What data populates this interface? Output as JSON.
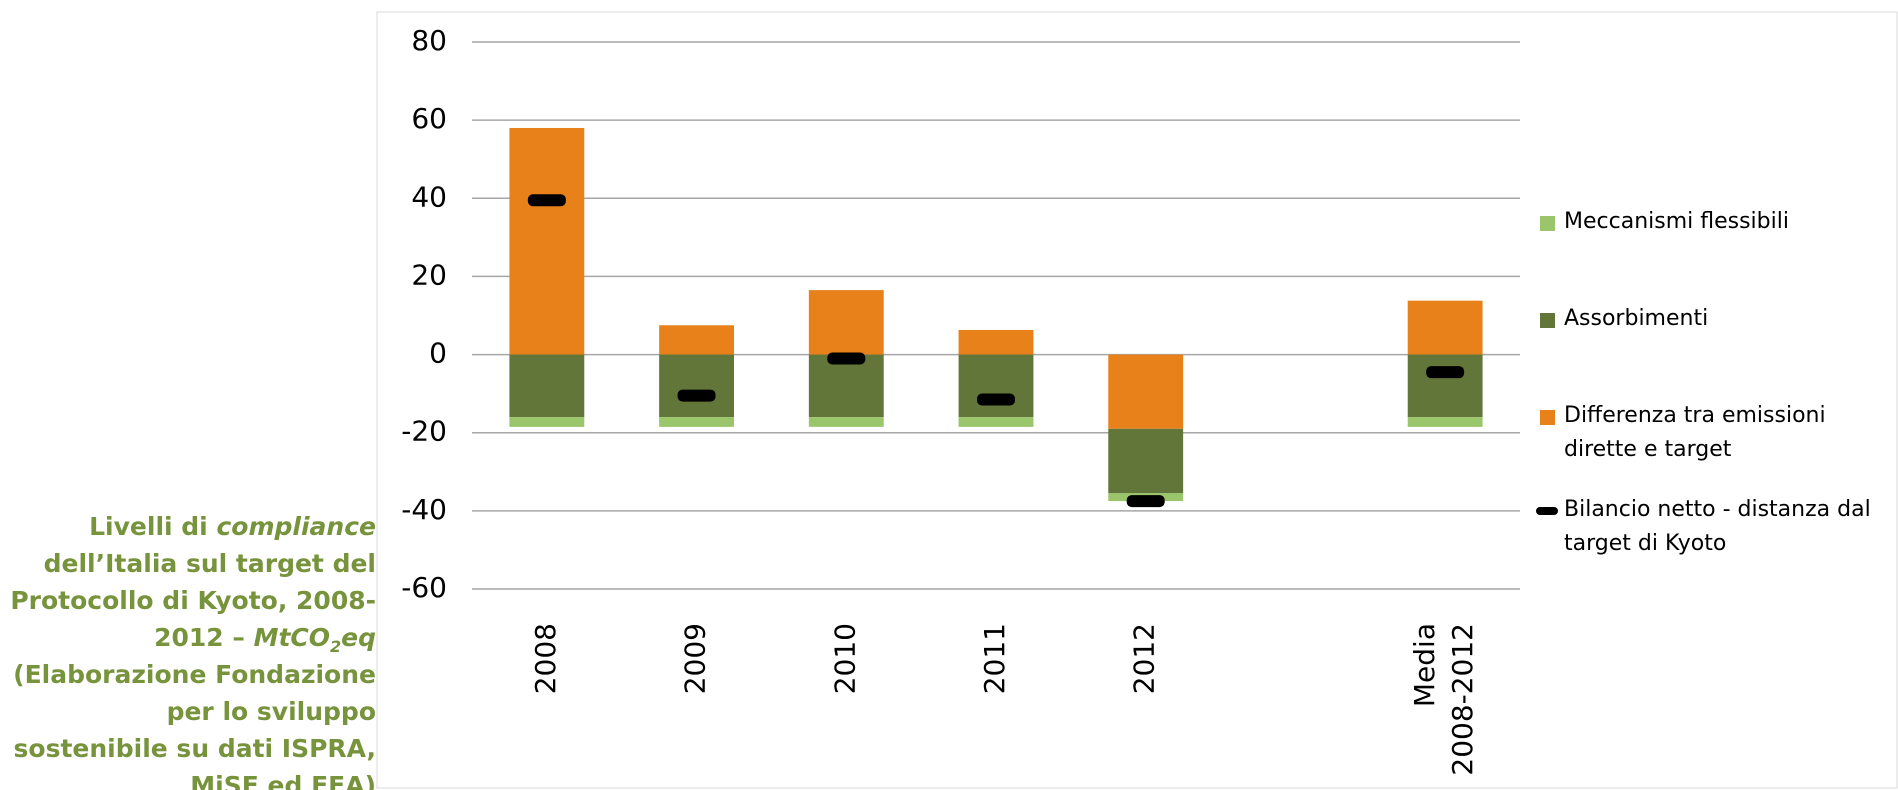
{
  "chart_data": {
    "type": "bar",
    "stacked": true,
    "categories": [
      "2008",
      "2009",
      "2010",
      "2011",
      "2012",
      null,
      "Media 2008-2012"
    ],
    "series": [
      {
        "name": "Differenza tra emissioni dirette e target",
        "color": "#e8811a",
        "values": [
          58,
          7.5,
          16.5,
          6.3,
          -19,
          null,
          13.8
        ]
      },
      {
        "name": "Assorbimenti",
        "color": "#627639",
        "values": [
          -16,
          -16,
          -16,
          -16,
          -16.5,
          null,
          -16
        ]
      },
      {
        "name": "Meccanismi flessibili",
        "color": "#9bc56b",
        "values": [
          -2.5,
          -2.5,
          -2.5,
          -2.5,
          -2,
          null,
          -2.5
        ]
      },
      {
        "name": "Bilancio netto - distanza dal target di Kyoto",
        "color": "#000000",
        "type": "marker",
        "values": [
          39.5,
          -10.5,
          -1,
          -11.5,
          -37.5,
          null,
          -4.5
        ]
      }
    ],
    "ylim": [
      -60,
      80
    ],
    "yticks": [
      -60,
      -40,
      -20,
      0,
      20,
      40,
      60,
      80
    ],
    "grid": true,
    "legend": "right",
    "caption": [
      "Livelli di ",
      "compliance",
      " dell’Italia sul target del Protocollo di Kyoto, 2008-2012 – ",
      "MtCO",
      "2",
      "eq",
      " (Elaborazione Fondazione per lo sviluppo sostenibile su dati ISPRA, MiSE ed EEA)"
    ]
  }
}
